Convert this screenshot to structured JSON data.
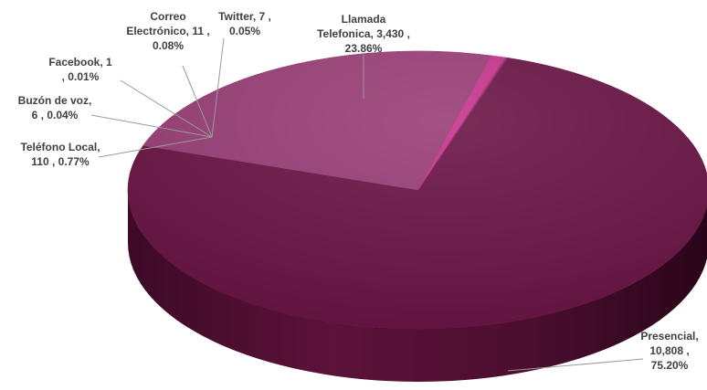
{
  "chart_data": {
    "type": "pie",
    "title": "",
    "legend": "none",
    "slices": [
      {
        "name": "Presencial",
        "value": 10808,
        "percent": 75.2,
        "color": "#6b1545",
        "label_lines": [
          "Presencial,",
          "10,808 ,",
          "75.20%"
        ]
      },
      {
        "name": "Llamada Telefonica",
        "value": 3430,
        "percent": 23.86,
        "color": "#9a3f77",
        "label_lines": [
          "Llamada",
          "Telefonica, 3,430 ,",
          "23.86%"
        ]
      },
      {
        "name": "Teléfono Local",
        "value": 110,
        "percent": 0.77,
        "color": "#c8358d",
        "label_lines": [
          "Teléfono Local,",
          "110 , 0.77%"
        ]
      },
      {
        "name": "Buzón de voz",
        "value": 6,
        "percent": 0.04,
        "color": "#b02a78",
        "label_lines": [
          "Buzón de voz,",
          "6 , 0.04%"
        ]
      },
      {
        "name": "Facebook",
        "value": 1,
        "percent": 0.01,
        "color": "#8e2063",
        "label_lines": [
          "Facebook, 1",
          ", 0.01%"
        ]
      },
      {
        "name": "Correo Electrónico",
        "value": 11,
        "percent": 0.08,
        "color": "#a3306f",
        "label_lines": [
          "Correo",
          "Electrónico, 11 ,",
          "0.08%"
        ]
      },
      {
        "name": "Twitter",
        "value": 7,
        "percent": 0.05,
        "color": "#7d1a55",
        "label_lines": [
          "Twitter, 7 ,",
          "0.05%"
        ]
      }
    ]
  }
}
